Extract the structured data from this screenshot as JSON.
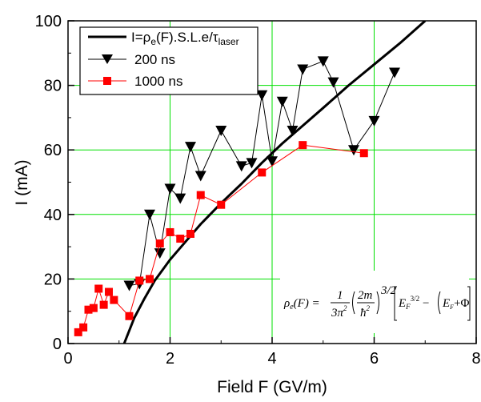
{
  "chart_data": {
    "type": "line",
    "xlabel": "Field F (GV/m)",
    "ylabel": "I (mA)",
    "xlim": [
      0,
      8
    ],
    "ylim": [
      0,
      100
    ],
    "x_ticks": [
      0,
      2,
      4,
      6,
      8
    ],
    "y_ticks": [
      0,
      20,
      40,
      60,
      80,
      100
    ],
    "grid": "on",
    "grid_color": "#00e000",
    "legend_position": "top-left",
    "series": [
      {
        "name": "I=ρe(F).S.L.e/τlaser",
        "legend_main": "I=ρ",
        "legend_sub1": "e",
        "legend_mid": "(F).S.L.e/τ",
        "legend_sub2": "laser",
        "style": "curve",
        "color": "#000000",
        "x": [
          1.1,
          1.3,
          1.5,
          1.7,
          2.0,
          2.3,
          2.6,
          3.0,
          3.4,
          3.8,
          4.2,
          4.6,
          5.0,
          5.5,
          6.0,
          6.5,
          7.0
        ],
        "values": [
          0,
          8,
          14,
          19.5,
          26,
          31.5,
          37,
          43.5,
          49.5,
          56,
          62,
          67.5,
          73,
          80,
          86.5,
          93,
          100
        ]
      },
      {
        "name": "200 ns",
        "style": "triangle-down",
        "color": "#000000",
        "x": [
          1.2,
          1.4,
          1.6,
          1.8,
          2.0,
          2.2,
          2.4,
          2.6,
          3.0,
          3.4,
          3.6,
          3.8,
          4.0,
          4.2,
          4.4,
          4.6,
          5.0,
          5.2,
          5.6,
          6.0,
          6.4
        ],
        "values": [
          18,
          18.5,
          40,
          28,
          48,
          45,
          61,
          52,
          66,
          55,
          56,
          77,
          56.5,
          75,
          66,
          85,
          87.5,
          81,
          60,
          69,
          84
        ]
      },
      {
        "name": "1000 ns",
        "style": "square",
        "color": "#ff0000",
        "x": [
          0.2,
          0.3,
          0.4,
          0.5,
          0.6,
          0.7,
          0.8,
          0.9,
          1.2,
          1.4,
          1.6,
          1.8,
          2.0,
          2.2,
          2.4,
          2.6,
          3.0,
          3.8,
          4.6,
          5.8
        ],
        "values": [
          3.5,
          5,
          10.5,
          11,
          17,
          12,
          16,
          13.5,
          8.5,
          19.5,
          20,
          31,
          34.5,
          32.5,
          34,
          46,
          43,
          53,
          61.5,
          59
        ]
      }
    ]
  }
}
